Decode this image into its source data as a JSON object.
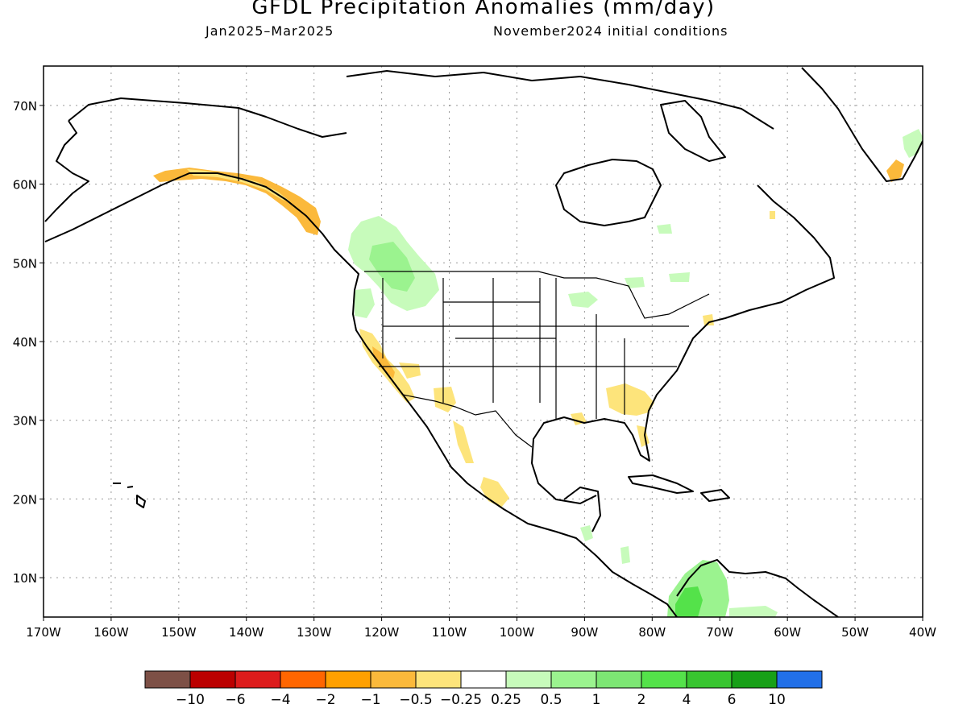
{
  "title": "GFDL Precipitation Anomalies (mm/day)",
  "period": "Jan2025–Mar2025",
  "init": "November2024 initial conditions",
  "map": {
    "lon_range": [
      -170,
      -40
    ],
    "lat_range": [
      5,
      75
    ],
    "lat_ticks": [
      {
        "value": 70,
        "label": "70N"
      },
      {
        "value": 60,
        "label": "60N"
      },
      {
        "value": 50,
        "label": "50N"
      },
      {
        "value": 40,
        "label": "40N"
      },
      {
        "value": 30,
        "label": "30N"
      },
      {
        "value": 20,
        "label": "20N"
      },
      {
        "value": 10,
        "label": "10N"
      }
    ],
    "lon_ticks": [
      {
        "value": -170,
        "label": "170W"
      },
      {
        "value": -160,
        "label": "160W"
      },
      {
        "value": -150,
        "label": "150W"
      },
      {
        "value": -140,
        "label": "140W"
      },
      {
        "value": -130,
        "label": "130W"
      },
      {
        "value": -120,
        "label": "120W"
      },
      {
        "value": -110,
        "label": "110W"
      },
      {
        "value": -100,
        "label": "100W"
      },
      {
        "value": -90,
        "label": "90W"
      },
      {
        "value": -80,
        "label": "80W"
      },
      {
        "value": -70,
        "label": "70W"
      },
      {
        "value": -60,
        "label": "60W"
      },
      {
        "value": -50,
        "label": "50W"
      },
      {
        "value": -40,
        "label": "40W"
      }
    ],
    "grid": "dotted"
  },
  "colorbar": {
    "colors": [
      "#7d5046",
      "#bb0000",
      "#dd1c1c",
      "#ff6600",
      "#ffa000",
      "#fbb93b",
      "#fde47b",
      "#ffffff",
      "#c7fbbb",
      "#9bf38f",
      "#7de674",
      "#54e24a",
      "#38c530",
      "#18a018",
      "#2270e8"
    ],
    "labels": [
      "−10",
      "−6",
      "−4",
      "−2",
      "−1",
      "−0.5",
      "−0.25",
      "0.25",
      "0.5",
      "1",
      "2",
      "4",
      "6",
      "10"
    ]
  },
  "anomalies": {
    "dry": [
      {
        "region": "Southern Alaska coast",
        "level": "-0.5"
      },
      {
        "region": "California",
        "level": "-0.5"
      },
      {
        "region": "Arizona",
        "level": "-0.25"
      },
      {
        "region": "Gulf of California coast",
        "level": "-0.25"
      },
      {
        "region": "Southwest Mexico",
        "level": "-0.25"
      },
      {
        "region": "Georgia / North Florida",
        "level": "-0.25"
      },
      {
        "region": "Southern Greenland",
        "level": "-0.5"
      }
    ],
    "wet": [
      {
        "region": "Pacific Northwest",
        "level": "0.5"
      },
      {
        "region": "Upper Great Lakes",
        "level": "0.25"
      },
      {
        "region": "Northwest South America",
        "level": "1"
      }
    ]
  }
}
